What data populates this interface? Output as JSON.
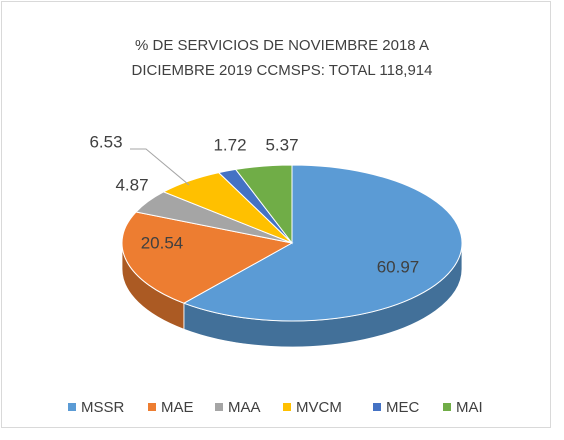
{
  "chart_data": {
    "type": "pie",
    "title": [
      "% DE SERVICIOS DE  NOVIEMBRE 2018 A",
      "DICIEMBRE 2019 CCMSPS: TOTAL 118,914"
    ],
    "categories": [
      "MSSR",
      "MAE",
      "MAA",
      "MVCM",
      "MEC",
      "MAI"
    ],
    "values": [
      60.97,
      20.54,
      4.87,
      6.53,
      1.72,
      5.37
    ],
    "colors": [
      "#5b9bd5",
      "#ed7d31",
      "#a5a5a5",
      "#ffc000",
      "#4472c4",
      "#70ad47"
    ],
    "legend": "bottom"
  }
}
